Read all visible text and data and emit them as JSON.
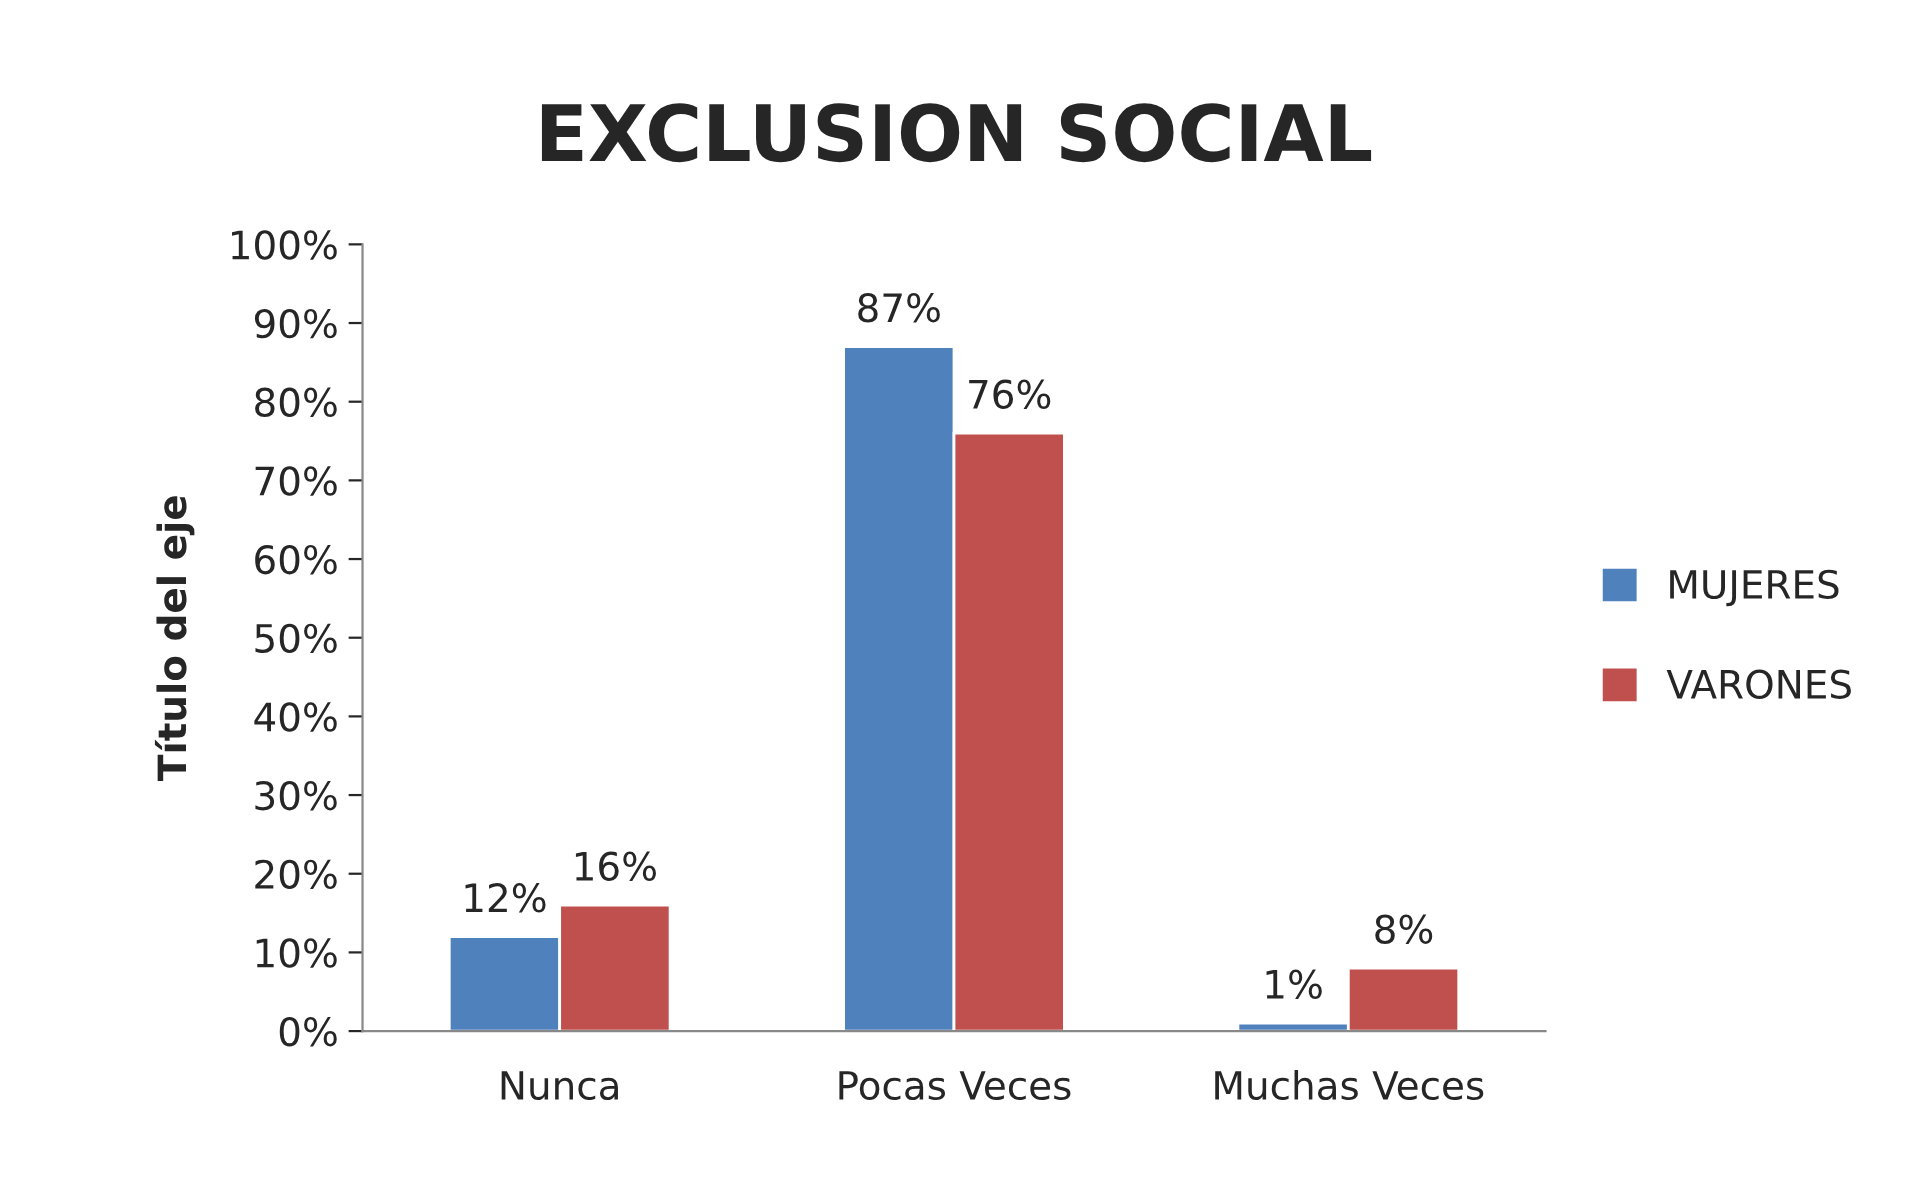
{
  "chart_data": {
    "type": "bar",
    "title": "EXCLUSION SOCIAL",
    "ylabel": "Título del eje",
    "categories": [
      "Nunca",
      "Pocas Veces",
      "Muchas Veces"
    ],
    "series": [
      {
        "name": "MUJERES",
        "color": "#4f81bd",
        "values": [
          12,
          87,
          1
        ],
        "value_labels": [
          "12%",
          "87%",
          "1%"
        ]
      },
      {
        "name": "VARONES",
        "color": "#c0504d",
        "values": [
          16,
          76,
          8
        ],
        "value_labels": [
          "16%",
          "76%",
          "8%"
        ]
      }
    ],
    "ylim": [
      0,
      100
    ],
    "yticks": [
      {
        "value": 0,
        "label": "0%"
      },
      {
        "value": 10,
        "label": "10%"
      },
      {
        "value": 20,
        "label": "20%"
      },
      {
        "value": 30,
        "label": "30%"
      },
      {
        "value": 40,
        "label": "40%"
      },
      {
        "value": 50,
        "label": "50%"
      },
      {
        "value": 60,
        "label": "60%"
      },
      {
        "value": 70,
        "label": "70%"
      },
      {
        "value": 80,
        "label": "80%"
      },
      {
        "value": 90,
        "label": "90%"
      },
      {
        "value": 100,
        "label": "100%"
      }
    ],
    "grid": false,
    "legend": "right"
  }
}
